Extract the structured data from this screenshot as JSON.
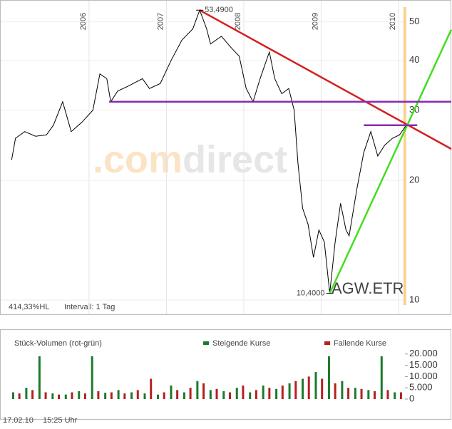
{
  "chart_data": [
    {
      "type": "line",
      "x": [
        2005.0,
        2005.05,
        2005.17,
        2005.31,
        2005.45,
        2005.54,
        2005.66,
        2005.77,
        2005.91,
        2006.05,
        2006.14,
        2006.23,
        2006.28,
        2006.37,
        2006.51,
        2006.69,
        2006.78,
        2006.92,
        2007.06,
        2007.2,
        2007.34,
        2007.43,
        2007.52,
        2007.57,
        2007.71,
        2007.84,
        2007.94,
        2008.03,
        2008.12,
        2008.21,
        2008.33,
        2008.4,
        2008.49,
        2008.58,
        2008.65,
        2008.7,
        2008.76,
        2008.83,
        2008.9,
        2008.97,
        2009.04,
        2009.11,
        2009.18,
        2009.25,
        2009.32,
        2009.36,
        2009.46,
        2009.55,
        2009.64,
        2009.73,
        2009.82,
        2009.92,
        2010.01,
        2010.1
      ],
      "series": [
        {
          "name": "AGW.ETR",
          "color": "#000000",
          "values": [
            22.5,
            25.5,
            26.5,
            25.8,
            26,
            27.5,
            31.5,
            26.5,
            28,
            30,
            37,
            36,
            31.5,
            33.5,
            34.5,
            36,
            34,
            35,
            40,
            45,
            48,
            53.49,
            48,
            44,
            46,
            43,
            41,
            34,
            31.5,
            36,
            42,
            36,
            33,
            34,
            30,
            22,
            17,
            15.5,
            12.8,
            15,
            14,
            10.4,
            14,
            17.5,
            15,
            14.5,
            19,
            23.5,
            26.5,
            23,
            24.5,
            25.5,
            26,
            27.5
          ]
        }
      ],
      "xlim": [
        2004.85,
        2010.68
      ],
      "xticks": [
        2006,
        2007,
        2008,
        2009,
        2010
      ],
      "ylim": [
        9.25,
        54
      ],
      "yticks": [
        10,
        20,
        30,
        40,
        50
      ],
      "log_scale": true,
      "grid": true,
      "annotations": [
        {
          "label": "53,4900",
          "x": 2007.43,
          "y": 53.49
        },
        {
          "label": "10,4000",
          "x": 2009.11,
          "y": 10.4
        }
      ],
      "trendlines": [
        {
          "color": "#d42020",
          "x": [
            2007.43,
            2010.68
          ],
          "y": [
            53.49,
            23.97
          ]
        },
        {
          "color": "#44dd22",
          "x": [
            2009.11,
            2010.68
          ],
          "y": [
            10.4,
            47.8
          ]
        },
        {
          "color": "#8a2ab0",
          "x": [
            2006.26,
            2010.68
          ],
          "y": [
            31.5,
            31.5
          ]
        },
        {
          "color": "#8a2ab0",
          "x": [
            2009.55,
            2010.24
          ],
          "y": [
            27.5,
            27.5
          ]
        }
      ],
      "marker_x": 2010.08,
      "marker_color": "#f7d38f",
      "watermark": [
        ".com",
        "direct"
      ],
      "info": [
        "414,33%HL",
        "Intervall: 1 Tag"
      ]
    },
    {
      "type": "bar",
      "title": "Stück-Volumen (rot-grün)",
      "xlim": [
        2004.85,
        2010.68
      ],
      "ylim": [
        0,
        21500
      ],
      "yticks": [
        0,
        {
          "value": 5000,
          "label": "5.000"
        },
        {
          "value": 10000,
          "label": "10.000"
        },
        {
          "value": 15000,
          "label": "15.000"
        },
        {
          "value": 20000,
          "label": "20.000"
        }
      ],
      "series": [
        {
          "name": "Steigende Kurse",
          "color": "#1b7a2c",
          "x": [
            2005.02,
            2005.19,
            2005.36,
            2005.53,
            2005.7,
            2005.87,
            2006.04,
            2006.21,
            2006.38,
            2006.55,
            2006.72,
            2006.89,
            2007.06,
            2007.23,
            2007.4,
            2007.57,
            2007.74,
            2007.91,
            2008.08,
            2008.25,
            2008.42,
            2008.59,
            2008.76,
            2008.93,
            2009.1,
            2009.27,
            2009.44,
            2009.61,
            2009.78,
            2009.95
          ],
          "values": [
            3000,
            5000,
            19000,
            2500,
            2000,
            3500,
            19000,
            2800,
            4000,
            3000,
            2500,
            2000,
            6000,
            3000,
            8000,
            4000,
            3500,
            5000,
            3000,
            6000,
            4500,
            7000,
            9000,
            12000,
            19000,
            8000,
            5000,
            4000,
            19000,
            3000
          ]
        },
        {
          "name": "Fallende Kurse",
          "color": "#b52020",
          "x": [
            2005.1,
            2005.27,
            2005.44,
            2005.61,
            2005.78,
            2005.95,
            2006.12,
            2006.29,
            2006.46,
            2006.63,
            2006.8,
            2006.97,
            2007.14,
            2007.31,
            2007.48,
            2007.65,
            2007.82,
            2007.99,
            2008.16,
            2008.33,
            2008.5,
            2008.67,
            2008.84,
            2009.01,
            2009.18,
            2009.35,
            2009.52,
            2009.69,
            2009.86,
            2010.03
          ],
          "values": [
            2500,
            4000,
            3000,
            2000,
            3000,
            2500,
            3500,
            3000,
            2500,
            4000,
            9000,
            3000,
            4000,
            5000,
            7000,
            4500,
            3000,
            6000,
            4000,
            5000,
            6000,
            8000,
            10000,
            9000,
            7000,
            5000,
            4500,
            3500,
            4000,
            3000
          ]
        }
      ]
    }
  ],
  "footer": {
    "date": "17.02.10",
    "time": "15:25 Uhr"
  }
}
